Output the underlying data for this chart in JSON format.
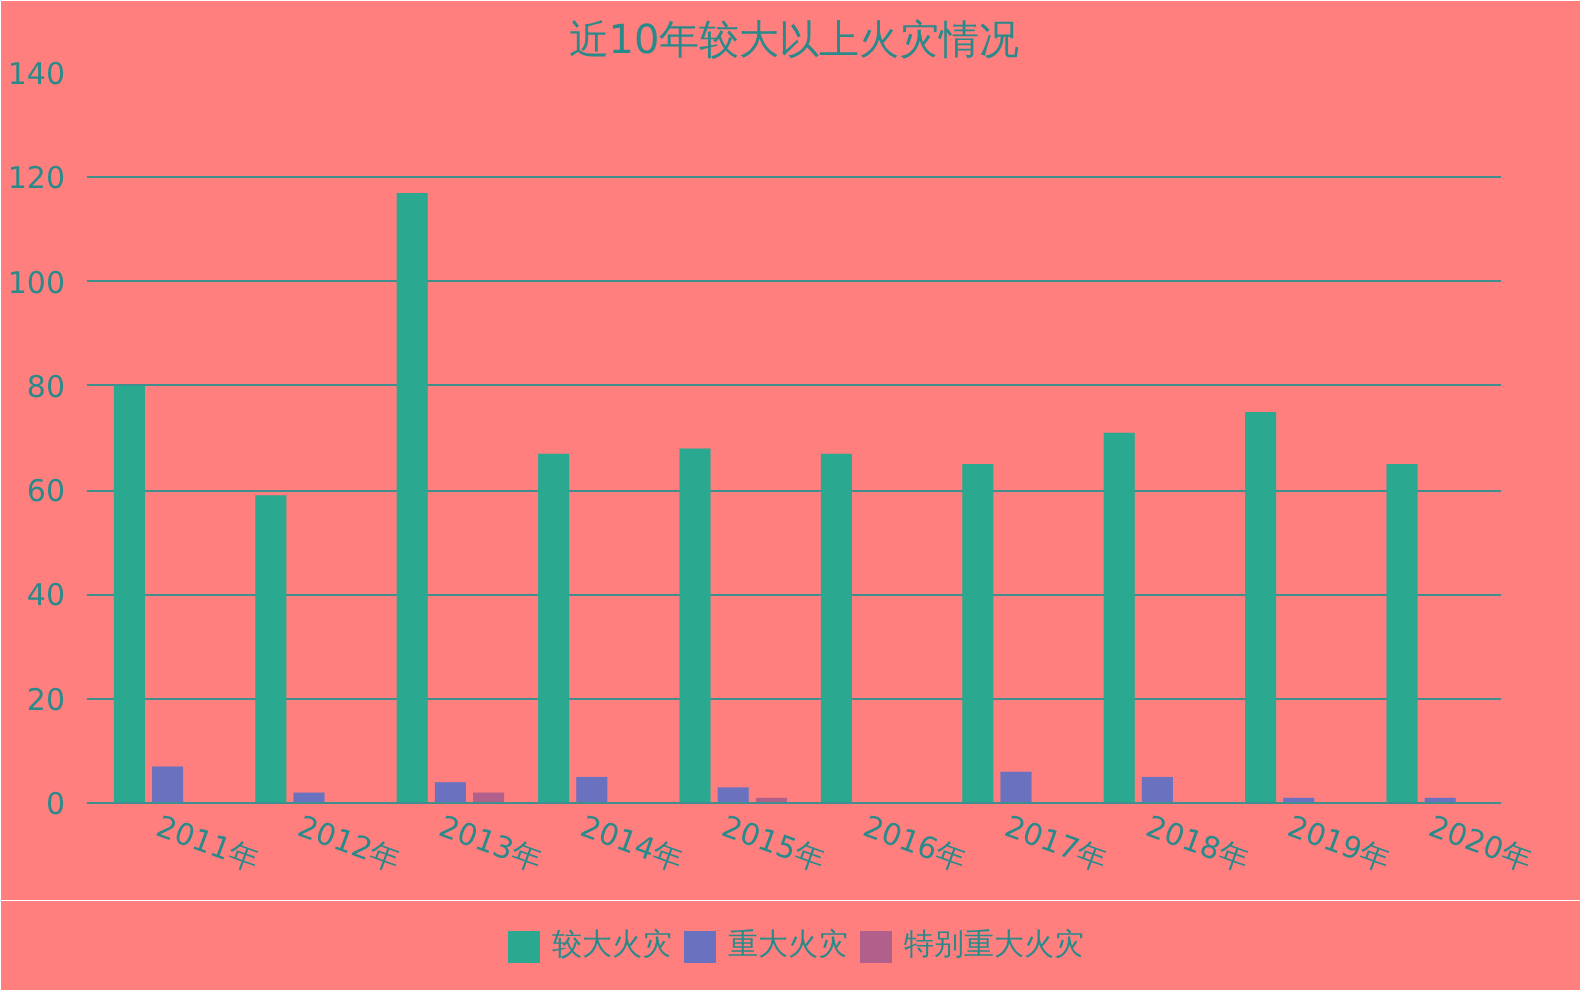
{
  "chart_data": {
    "type": "bar",
    "title": "近10年较大以上火灾情况",
    "categories": [
      "2011年",
      "2012年",
      "2013年",
      "2014年",
      "2015年",
      "2016年",
      "2017年",
      "2018年",
      "2019年",
      "2020年"
    ],
    "series": [
      {
        "name": "较大火灾",
        "color": "#2aa890",
        "values": [
          80,
          59,
          117,
          67,
          68,
          67,
          65,
          71,
          75,
          65
        ]
      },
      {
        "name": "重大火灾",
        "color": "#6a72c0",
        "values": [
          7,
          2,
          4,
          5,
          3,
          0,
          6,
          5,
          1,
          1
        ]
      },
      {
        "name": "特别重大火灾",
        "color": "#b0608a",
        "values": [
          0,
          0,
          2,
          0,
          1,
          0,
          0,
          0,
          0,
          0
        ]
      }
    ],
    "ylim": [
      0,
      140
    ],
    "yticks": [
      0,
      20,
      40,
      60,
      80,
      100,
      120,
      140
    ],
    "grid": "y",
    "legend": "bottom"
  }
}
